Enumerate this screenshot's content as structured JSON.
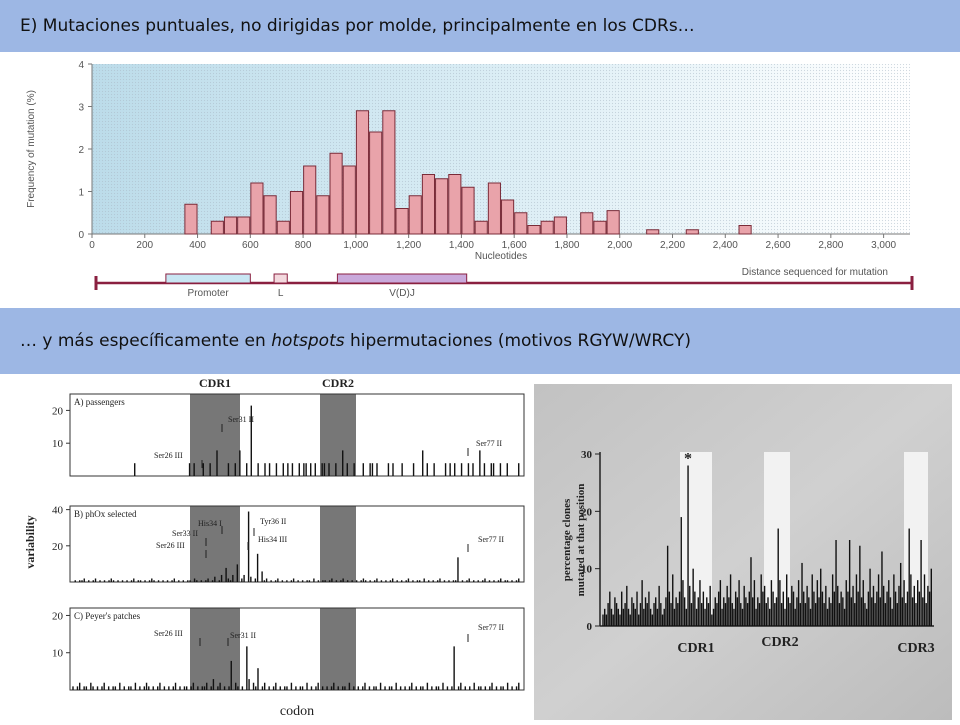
{
  "slide": {
    "heading1": "E) Mutaciones puntuales, no dirigidas por molde, principalmente en los CDRs…",
    "heading2": {
      "pre": "… y más específicamente en ",
      "em": "hotspots",
      "post": " hipermutaciones (motivos RGYW/WRCY)"
    }
  },
  "colors": {
    "banner": "#9db7e4",
    "bar_fill": "#e9a3aa",
    "bar_stroke": "#7a2b38",
    "plot_bg": "#c9e4ef",
    "cdr_shade": "#777777",
    "gene_track": "#8a2040"
  },
  "chart_data": [
    {
      "type": "bar",
      "ylabel": "Frequency of mutation (%)",
      "xlabel": "Nucleotides",
      "ylim": [
        0,
        4
      ],
      "yticks": [
        "0",
        "1",
        "2",
        "3",
        "4"
      ],
      "xlim": [
        0,
        3100
      ],
      "xticks": [
        0,
        200,
        400,
        600,
        800,
        1000,
        1200,
        1400,
        1600,
        1800,
        2000,
        2200,
        2400,
        2600,
        2800,
        3000
      ],
      "xtick_labels": [
        "0",
        "200",
        "400",
        "600",
        "800",
        "1,000",
        "1,200",
        "1,400",
        "1,600",
        "1,800",
        "2,000",
        "2,200",
        "2,400",
        "2,600",
        "2,800",
        "3,000"
      ],
      "bin_width": 50,
      "x": [
        375,
        475,
        525,
        575,
        625,
        675,
        725,
        775,
        825,
        875,
        925,
        975,
        1025,
        1075,
        1125,
        1175,
        1225,
        1275,
        1325,
        1375,
        1425,
        1475,
        1525,
        1575,
        1625,
        1675,
        1725,
        1775,
        1875,
        1925,
        1975,
        2125,
        2275,
        2475
      ],
      "values": [
        0.7,
        0.3,
        0.4,
        0.4,
        1.2,
        0.9,
        0.3,
        1.0,
        1.6,
        0.9,
        1.9,
        1.6,
        2.9,
        2.4,
        2.9,
        0.6,
        0.9,
        1.4,
        1.3,
        1.4,
        1.1,
        0.3,
        1.2,
        0.8,
        0.5,
        0.2,
        0.3,
        0.4,
        0.5,
        0.3,
        0.55,
        0.1,
        0.1,
        0.2
      ],
      "track_label": "Distance sequenced for mutation",
      "gene_segments": [
        {
          "label": "Promoter",
          "start": 280,
          "end": 600,
          "color": "#c8e6f3"
        },
        {
          "label": "L",
          "start": 690,
          "end": 740,
          "color": "#f3d9de"
        },
        {
          "label": "V(D)J",
          "start": 930,
          "end": 1420,
          "color": "#c9a9db"
        }
      ]
    },
    {
      "type": "bar",
      "ylabel": "variability",
      "xlabel": "codon",
      "shaded_regions": [
        "CDR1",
        "CDR2"
      ],
      "panels": [
        {
          "title": "A) passengers",
          "yticks": [
            "10",
            "20"
          ],
          "ymax": 25,
          "annotations": [
            {
              "text": "Ser31 II"
            },
            {
              "text": "Ser26 III"
            },
            {
              "text": "Ser77 II"
            }
          ],
          "values": [
            0,
            0,
            0,
            0,
            0,
            0,
            0,
            0,
            0,
            0,
            0,
            0,
            0,
            0,
            0,
            0,
            0,
            0,
            0,
            0,
            0,
            0,
            0,
            0,
            0,
            0,
            0,
            4,
            0,
            0,
            0,
            0,
            0,
            0,
            0,
            0,
            0,
            0,
            0,
            0,
            0,
            0,
            0,
            0,
            0,
            0,
            0,
            0,
            0,
            0,
            0,
            4,
            0,
            4,
            0,
            0,
            0,
            4,
            0,
            0,
            4,
            0,
            0,
            8,
            0,
            0,
            0,
            0,
            4,
            0,
            0,
            4,
            0,
            8,
            0,
            0,
            4,
            0,
            22,
            0,
            0,
            4,
            0,
            0,
            4,
            0,
            4,
            0,
            0,
            4,
            0,
            0,
            4,
            0,
            4,
            0,
            4,
            0,
            0,
            4,
            0,
            4,
            4,
            0,
            4,
            0,
            4,
            0,
            0,
            4,
            4,
            0,
            4,
            0,
            0,
            4,
            0,
            0,
            8,
            0,
            4,
            0,
            0,
            4,
            0,
            0,
            0,
            4,
            0,
            0,
            4,
            4,
            0,
            4,
            0,
            0,
            0,
            0,
            4,
            0,
            4,
            0,
            0,
            0,
            4,
            0,
            0,
            0,
            0,
            4,
            0,
            0,
            0,
            8,
            0,
            4,
            0,
            0,
            4,
            0,
            0,
            0,
            0,
            4,
            0,
            4,
            0,
            4,
            0,
            0,
            4,
            0,
            0,
            4,
            0,
            4,
            0,
            0,
            8,
            0,
            4,
            0,
            0,
            4,
            4,
            0,
            0,
            4,
            0,
            0,
            4,
            0,
            0,
            0,
            0,
            4
          ]
        },
        {
          "title": "B) phOx selected",
          "yticks": [
            "20",
            "40"
          ],
          "ymax": 42,
          "annotations": [
            {
              "text": "His34 I"
            },
            {
              "text": "Tyr36 II"
            },
            {
              "text": "Ser33 II"
            },
            {
              "text": "His34 III"
            },
            {
              "text": "Ser26 III"
            },
            {
              "text": "Ser77 II"
            }
          ],
          "values": [
            0,
            1,
            0,
            1,
            1,
            2,
            0,
            1,
            0,
            1,
            2,
            0,
            1,
            0,
            1,
            0,
            1,
            2,
            1,
            0,
            1,
            0,
            1,
            0,
            1,
            0,
            1,
            2,
            0,
            1,
            1,
            0,
            1,
            0,
            1,
            2,
            1,
            0,
            1,
            0,
            1,
            0,
            1,
            0,
            1,
            2,
            0,
            1,
            0,
            1,
            0,
            1,
            1,
            0,
            2,
            1,
            0,
            1,
            0,
            1,
            2,
            0,
            1,
            3,
            0,
            1,
            4,
            0,
            8,
            2,
            1,
            4,
            0,
            10,
            0,
            2,
            4,
            0,
            40,
            3,
            0,
            2,
            16,
            0,
            6,
            1,
            2,
            0,
            1,
            0,
            1,
            2,
            0,
            1,
            0,
            1,
            0,
            1,
            2,
            0,
            1,
            0,
            1,
            0,
            1,
            1,
            0,
            2,
            0,
            1,
            0,
            1,
            1,
            0,
            1,
            2,
            0,
            1,
            0,
            1,
            2,
            0,
            1,
            0,
            1,
            0,
            1,
            0,
            1,
            2,
            1,
            0,
            1,
            0,
            1,
            2,
            0,
            1,
            0,
            1,
            0,
            1,
            2,
            0,
            1,
            0,
            1,
            0,
            1,
            2,
            0,
            1,
            0,
            1,
            1,
            0,
            2,
            0,
            1,
            0,
            1,
            0,
            1,
            2,
            0,
            1,
            0,
            1,
            0,
            1,
            1,
            14,
            0,
            1,
            0,
            1,
            2,
            0,
            1,
            0,
            1,
            0,
            1,
            2,
            0,
            1,
            0,
            1,
            0,
            1,
            2,
            0,
            1,
            1,
            0,
            1,
            0,
            1,
            2
          ]
        },
        {
          "title": "C) Peyer's patches",
          "yticks": [
            "10",
            "20"
          ],
          "ymax": 22,
          "annotations": [
            {
              "text": "Ser26 III"
            },
            {
              "text": "Ser31 II"
            },
            {
              "text": "Ser77 II"
            }
          ],
          "values": [
            1,
            0,
            1,
            2,
            0,
            1,
            1,
            0,
            2,
            1,
            0,
            1,
            0,
            1,
            2,
            0,
            1,
            0,
            1,
            1,
            0,
            2,
            0,
            1,
            0,
            1,
            1,
            0,
            2,
            0,
            1,
            0,
            1,
            2,
            1,
            0,
            1,
            0,
            1,
            2,
            0,
            1,
            0,
            1,
            0,
            1,
            2,
            0,
            1,
            0,
            1,
            1,
            0,
            1,
            2,
            0,
            1,
            0,
            1,
            1,
            2,
            0,
            1,
            3,
            0,
            1,
            2,
            0,
            1,
            0,
            1,
            8,
            0,
            2,
            1,
            0,
            1,
            0,
            12,
            3,
            0,
            2,
            1,
            6,
            0,
            1,
            2,
            0,
            1,
            0,
            1,
            2,
            0,
            1,
            0,
            1,
            1,
            0,
            2,
            0,
            1,
            0,
            1,
            1,
            0,
            2,
            0,
            1,
            0,
            1,
            2,
            0,
            1,
            0,
            1,
            0,
            1,
            2,
            0,
            1,
            0,
            1,
            1,
            0,
            2,
            0,
            1,
            0,
            1,
            0,
            1,
            2,
            0,
            1,
            0,
            1,
            1,
            0,
            2,
            0,
            1,
            0,
            1,
            1,
            0,
            2,
            0,
            1,
            0,
            1,
            0,
            1,
            2,
            0,
            1,
            0,
            1,
            1,
            0,
            2,
            0,
            1,
            0,
            1,
            1,
            0,
            2,
            0,
            1,
            0,
            1,
            12,
            0,
            1,
            2,
            0,
            1,
            0,
            1,
            0,
            2,
            0,
            1,
            1,
            0,
            1,
            0,
            1,
            2,
            0,
            1,
            0,
            1,
            1,
            0,
            2,
            0,
            1,
            0,
            1,
            2
          ]
        }
      ]
    },
    {
      "type": "bar",
      "ylabel": "percentage clones mutated at that position",
      "ylim": [
        0,
        30
      ],
      "yticks": [
        "0",
        "10",
        "20",
        "30"
      ],
      "xlabels": [
        "CDR1",
        "CDR2",
        "CDR3"
      ],
      "marker": "*",
      "values": [
        2,
        3,
        2,
        4,
        6,
        3,
        2,
        5,
        4,
        3,
        2,
        6,
        3,
        4,
        7,
        3,
        2,
        5,
        4,
        3,
        6,
        2,
        4,
        8,
        3,
        5,
        4,
        6,
        3,
        2,
        4,
        5,
        3,
        7,
        4,
        2,
        3,
        5,
        14,
        6,
        4,
        9,
        3,
        5,
        4,
        6,
        19,
        8,
        5,
        3,
        28,
        7,
        4,
        10,
        6,
        3,
        5,
        8,
        4,
        6,
        3,
        5,
        4,
        7,
        2,
        3,
        5,
        4,
        6,
        8,
        3,
        5,
        4,
        7,
        5,
        9,
        4,
        3,
        6,
        5,
        8,
        4,
        3,
        7,
        5,
        4,
        6,
        12,
        5,
        8,
        3,
        5,
        4,
        9,
        6,
        7,
        4,
        5,
        3,
        8,
        6,
        4,
        5,
        17,
        8,
        4,
        6,
        3,
        9,
        5,
        4,
        7,
        6,
        3,
        5,
        8,
        4,
        11,
        6,
        4,
        7,
        5,
        3,
        9,
        6,
        4,
        8,
        5,
        10,
        6,
        4,
        7,
        3,
        5,
        4,
        9,
        6,
        15,
        7,
        4,
        6,
        5,
        3,
        8,
        6,
        15,
        5,
        7,
        4,
        9,
        6,
        14,
        5,
        8,
        4,
        3,
        6,
        10,
        5,
        7,
        4,
        6,
        9,
        5,
        13,
        7,
        4,
        6,
        8,
        5,
        3,
        9,
        6,
        4,
        7,
        11,
        5,
        8,
        4,
        6,
        17,
        9,
        5,
        7,
        4,
        8,
        6,
        15,
        5,
        9,
        4,
        7,
        6,
        10
      ]
    }
  ]
}
